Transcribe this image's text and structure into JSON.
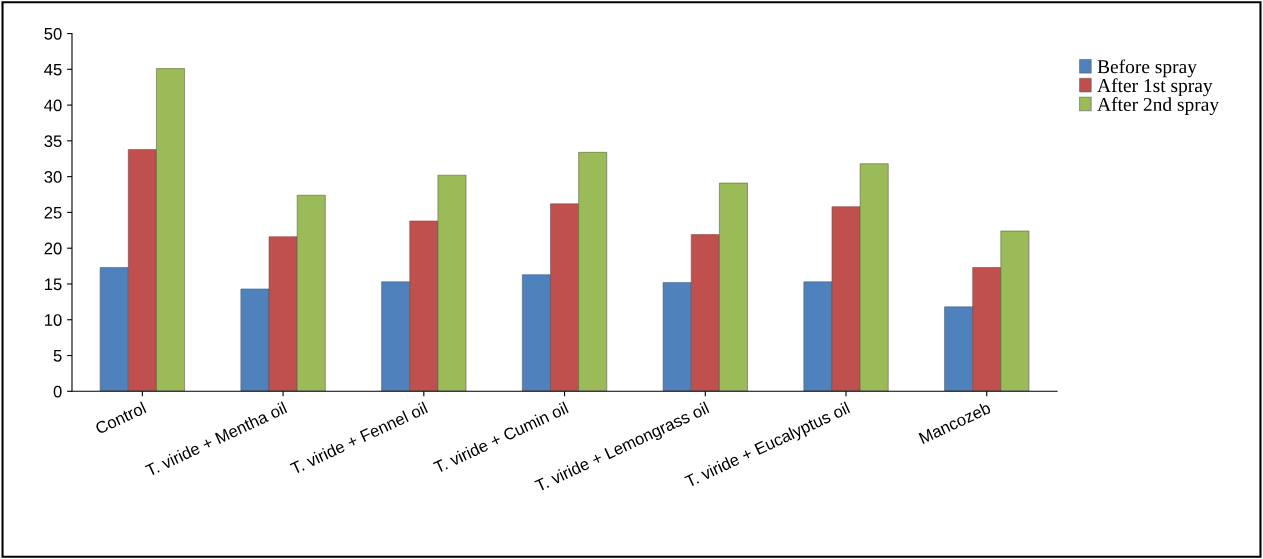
{
  "chart_data": {
    "type": "bar",
    "categories": [
      "Control",
      "T. viride + Mentha oil",
      "T. viride + Fennel oil",
      "T. viride + Cumin oil",
      "T. viride + Lemongrass oil",
      "T. viride + Eucalyptus oil",
      "Mancozeb"
    ],
    "series": [
      {
        "name": "Before spray",
        "color": "#4f81bd",
        "values": [
          17.3,
          14.3,
          15.3,
          16.3,
          15.2,
          15.3,
          11.8
        ]
      },
      {
        "name": "After 1st spray",
        "color": "#c0504d",
        "values": [
          33.8,
          21.6,
          23.8,
          26.2,
          21.9,
          25.8,
          17.3
        ]
      },
      {
        "name": "After 2nd spray",
        "color": "#9bbb59",
        "values": [
          45.1,
          27.4,
          30.2,
          33.4,
          29.1,
          31.8,
          22.4
        ]
      }
    ],
    "ylim": [
      0,
      50
    ],
    "yticks": [
      0,
      5,
      10,
      15,
      20,
      25,
      30,
      35,
      40,
      45,
      50
    ],
    "grid": false,
    "legend": "right"
  }
}
